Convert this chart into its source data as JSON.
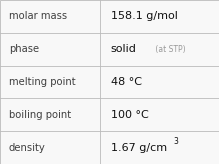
{
  "rows": [
    {
      "label": "molar mass",
      "value": "158.1 g/mol",
      "suffix": null,
      "superscript": null
    },
    {
      "label": "phase",
      "value": "solid",
      "suffix": " (at STP)",
      "superscript": null
    },
    {
      "label": "melting point",
      "value": "48 °C",
      "suffix": null,
      "superscript": null
    },
    {
      "label": "boiling point",
      "value": "100 °C",
      "suffix": null,
      "superscript": null
    },
    {
      "label": "density",
      "value": "1.67 g/cm",
      "suffix": null,
      "superscript": "3"
    }
  ],
  "col_split": 0.455,
  "bg_color": "#f8f8f8",
  "grid_color": "#bbbbbb",
  "label_color": "#404040",
  "value_color": "#111111",
  "suffix_color": "#999999",
  "label_fontsize": 7.2,
  "value_fontsize": 8.0,
  "suffix_fontsize": 5.5,
  "super_fontsize": 5.5
}
